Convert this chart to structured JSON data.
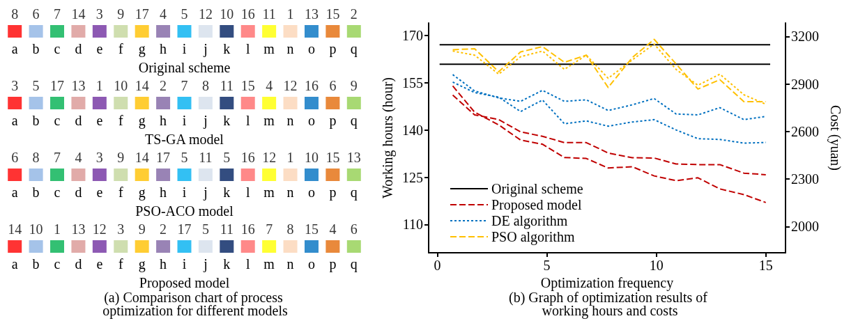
{
  "chart_data": [
    {
      "type": "other",
      "data_labels": true,
      "title": "(a) Comparison chart of process optimization for different models",
      "categories": [
        "a",
        "b",
        "c",
        "d",
        "e",
        "f",
        "g",
        "h",
        "i",
        "j",
        "k",
        "l",
        "m",
        "n",
        "o",
        "p",
        "q"
      ],
      "colors": [
        "#ff0000",
        "#8eb4e3",
        "#00b050",
        "#d99694",
        "#7030a0",
        "#c3d69b",
        "#ffc000",
        "#8064a2",
        "#00b0f0",
        "#d5dfeb",
        "#002060",
        "#ff6b6b",
        "#ffff00",
        "#fbd5b5",
        "#0070c0",
        "#e46c0a",
        "#92d050"
      ],
      "series": [
        {
          "name": "Original scheme",
          "values": [
            8,
            6,
            7,
            14,
            3,
            9,
            17,
            4,
            5,
            12,
            10,
            16,
            11,
            1,
            13,
            15,
            2
          ]
        },
        {
          "name": "TS-GA model",
          "values": [
            3,
            5,
            17,
            13,
            1,
            10,
            14,
            2,
            7,
            8,
            11,
            15,
            4,
            12,
            16,
            6,
            9
          ]
        },
        {
          "name": "PSO-ACO model",
          "values": [
            6,
            8,
            7,
            4,
            3,
            9,
            14,
            17,
            5,
            11,
            5,
            16,
            12,
            1,
            10,
            15,
            13
          ]
        },
        {
          "name": "Proposed model",
          "values": [
            14,
            10,
            1,
            13,
            12,
            3,
            9,
            2,
            17,
            5,
            11,
            16,
            7,
            8,
            15,
            4,
            6
          ]
        }
      ]
    },
    {
      "type": "line",
      "title": "(b) Graph of optimization results of working hours and costs",
      "xlabel": "Optimization frequency",
      "ylabel": "Working hours (hour)",
      "y2label": "Cost (yuan)",
      "xlim": [
        -0.4,
        15.9
      ],
      "xticks": [
        0,
        5,
        10,
        15
      ],
      "ylim": [
        101,
        174
      ],
      "yticks": [
        110,
        125,
        140,
        155,
        170
      ],
      "y2lim": [
        1835,
        3285
      ],
      "y2ticks": [
        2000,
        2300,
        2600,
        2900,
        3200
      ],
      "legend": "bottom left",
      "series": [
        {
          "name": "Original scheme",
          "color": "#000000",
          "line_style": "solid",
          "x": [
            0.1,
            15.2
          ],
          "values": [
            167.1,
            167.1
          ]
        },
        {
          "color": "#000000",
          "line_style": "solid",
          "axis": "y2",
          "x": [
            0.1,
            15.2
          ],
          "values": [
            3025,
            3025
          ]
        },
        {
          "name": "Proposed model",
          "color": "#c00000",
          "line_style": "dashed",
          "x": [
            0.7,
            1.7,
            2.8,
            3.8,
            4.8,
            5.8,
            6.8,
            7.8,
            8.9,
            9.9,
            10.9,
            11.9,
            12.9,
            14,
            15
          ],
          "values": [
            151.1,
            144.8,
            143.3,
            139.4,
            138,
            136,
            136,
            132.7,
            131.2,
            131.1,
            129.2,
            129,
            129,
            126.3,
            125.8
          ]
        },
        {
          "color": "#c00000",
          "line_style": "dashed",
          "axis": "y2",
          "x": [
            0.7,
            1.7,
            2.8,
            3.8,
            4.8,
            5.8,
            6.8,
            7.8,
            8.9,
            9.9,
            10.9,
            11.9,
            12.9,
            14,
            15
          ],
          "values": [
            2888,
            2722,
            2642,
            2546,
            2520,
            2436,
            2430,
            2370,
            2378,
            2320,
            2290,
            2308,
            2238,
            2202,
            2152
          ]
        },
        {
          "name": "DE algorithm",
          "color": "#0070c0",
          "line_style": "dotted",
          "x": [
            0.7,
            1.7,
            2.8,
            3.8,
            4.8,
            5.8,
            6.8,
            7.8,
            8.9,
            9.9,
            10.9,
            11.9,
            12.9,
            14,
            15
          ],
          "values": [
            157.6,
            152.4,
            150.2,
            149.1,
            152.6,
            149.1,
            149.6,
            146.2,
            148,
            150,
            145.1,
            144.8,
            147.1,
            143.3,
            144.3
          ]
        },
        {
          "color": "#0070c0",
          "line_style": "dotted",
          "axis": "y2",
          "x": [
            0.7,
            1.7,
            2.8,
            3.8,
            4.8,
            5.8,
            6.8,
            7.8,
            8.9,
            9.9,
            10.9,
            11.9,
            12.9,
            14,
            15
          ],
          "values": [
            2912,
            2846,
            2817,
            2726,
            2799,
            2649,
            2667,
            2634,
            2660,
            2675,
            2610,
            2555,
            2550,
            2527,
            2531
          ]
        },
        {
          "name": "PSO algorithm",
          "color": "#ffc000",
          "line_style": "dashed",
          "x": [
            0.7,
            1.7,
            2.8,
            3.8,
            4.8,
            5.8,
            6.8,
            7.8,
            8.9,
            9.9,
            10.9,
            11.9,
            12.9,
            14,
            15
          ],
          "values": [
            165.5,
            165.8,
            158.5,
            164.8,
            166.5,
            161.5,
            163.8,
            153.5,
            163,
            168.8,
            161,
            153,
            156,
            149,
            149
          ]
        },
        {
          "color": "#ffc000",
          "line_style": "dotted",
          "axis": "y2",
          "x": [
            0.7,
            1.7,
            2.8,
            3.8,
            4.8,
            5.8,
            6.8,
            7.8,
            8.9,
            9.9,
            10.9,
            11.9,
            12.9,
            14,
            15
          ],
          "values": [
            3108,
            3082,
            2962,
            3072,
            3108,
            2992,
            3082,
            2936,
            3052,
            3152,
            2992,
            2892,
            2962,
            2832,
            2772
          ]
        }
      ]
    }
  ]
}
